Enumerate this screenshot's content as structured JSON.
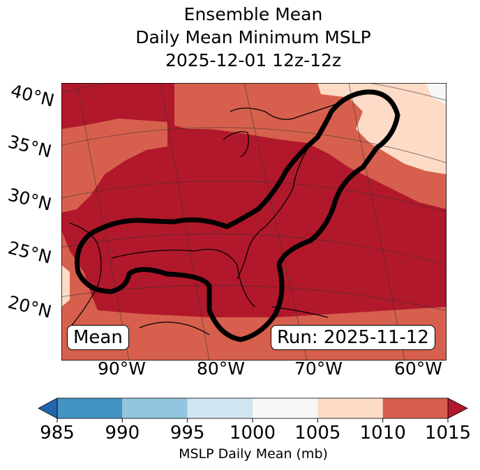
{
  "title": {
    "line1": "Ensemble Mean",
    "line2": "Daily Mean Minimum MSLP",
    "line3": "2025-12-01 12z-12z"
  },
  "lat_labels": [
    "40°N",
    "35°N",
    "30°N",
    "25°N",
    "20°N"
  ],
  "lon_labels": [
    "90°W",
    "80°W",
    "70°W",
    "60°W"
  ],
  "annotations": {
    "left": "Mean",
    "right": "Run: 2025-11-12"
  },
  "colorbar": {
    "label": "MSLP Daily Mean (mb)",
    "ticks": [
      "985",
      "990",
      "995",
      "1000",
      "1005",
      "1010",
      "1015"
    ],
    "colors": [
      "#4393c3",
      "#92c5de",
      "#d1e5f0",
      "#f7f7f7",
      "#fddbc7",
      "#d6604d"
    ],
    "under_color": "#2166ac",
    "over_color": "#b2182b"
  }
}
